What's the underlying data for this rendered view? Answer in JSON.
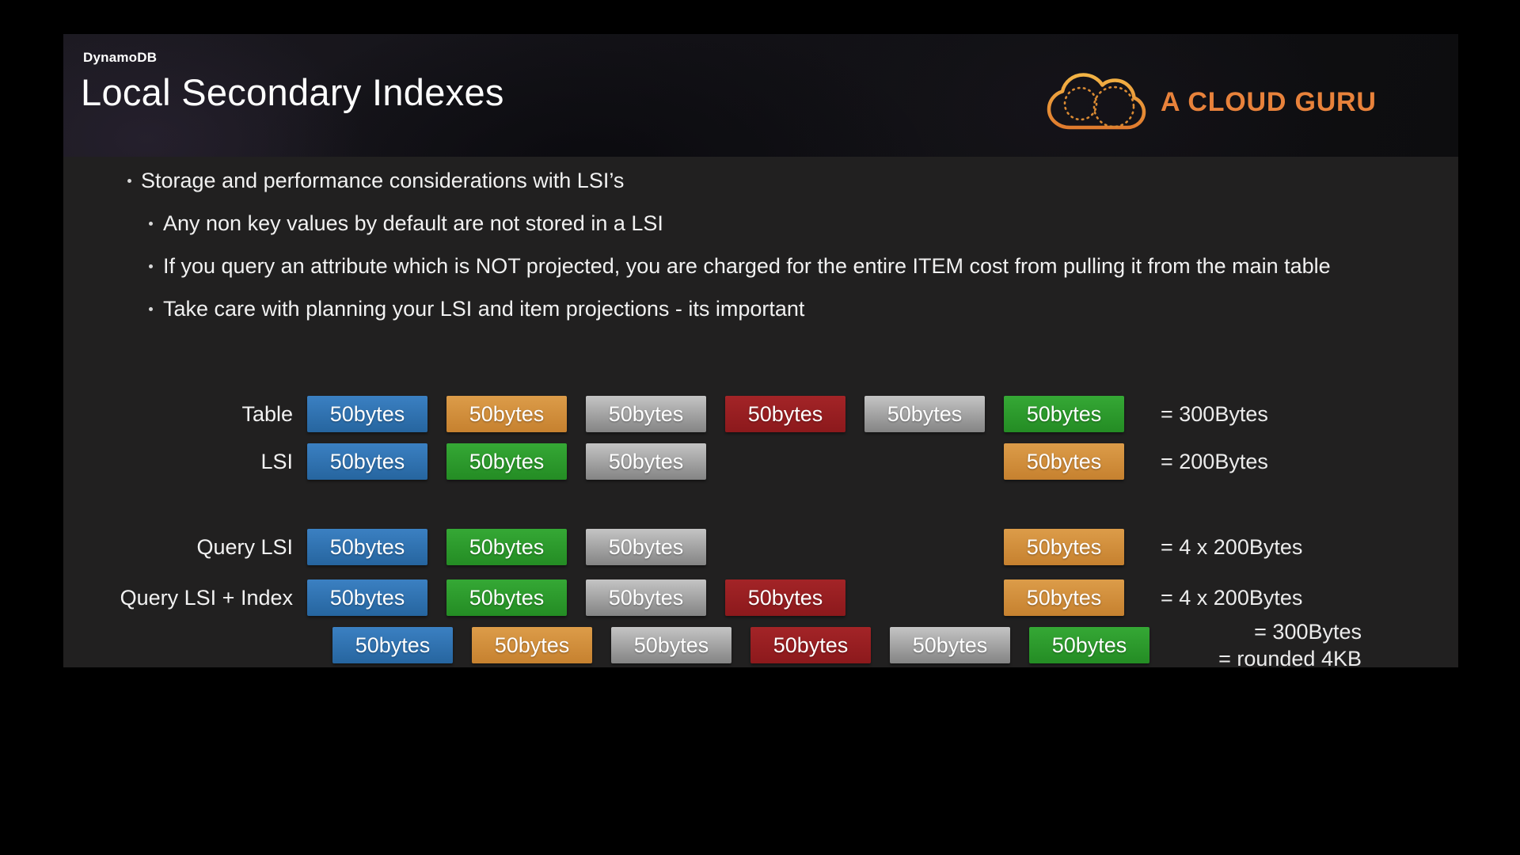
{
  "slide": {
    "kicker": "DynamoDB",
    "title": "Local Secondary Indexes",
    "logo": {
      "text": "A CLOUD GURU",
      "color": "#E8823B",
      "icon": "cloud-outline-icon"
    },
    "bullets": {
      "level1": "Storage and performance considerations with LSI’s",
      "level2": [
        "Any non key values by default are not stored in a LSI",
        "If you query an attribute which is NOT projected, you are charged for the entire ITEM cost from pulling it from the main table",
        "Take care with planning your LSI and item projections - its important"
      ]
    },
    "diagram": {
      "box_label": "50bytes",
      "colors": {
        "blue": {
          "top": "#3B80C2",
          "bottom": "#26659F"
        },
        "orange": {
          "top": "#DC9C49",
          "bottom": "#C6812F"
        },
        "gray": {
          "top": "#C4C4C4",
          "bottom": "#848484"
        },
        "red": {
          "top": "#A32427",
          "bottom": "#8C191C"
        },
        "green": {
          "top": "#35A835",
          "bottom": "#248C24"
        }
      },
      "rows": [
        {
          "label": "Table",
          "cells": [
            {
              "col": 0,
              "color": "blue"
            },
            {
              "col": 1,
              "color": "orange"
            },
            {
              "col": 2,
              "color": "gray"
            },
            {
              "col": 3,
              "color": "red"
            },
            {
              "col": 4,
              "color": "gray"
            },
            {
              "col": 5,
              "color": "green"
            }
          ],
          "result": "= 300Bytes"
        },
        {
          "label": "LSI",
          "cells": [
            {
              "col": 0,
              "color": "blue"
            },
            {
              "col": 1,
              "color": "green"
            },
            {
              "col": 2,
              "color": "gray"
            },
            {
              "col": 5,
              "color": "orange"
            }
          ],
          "result": "= 200Bytes"
        },
        {
          "label": "Query LSI",
          "cells": [
            {
              "col": 0,
              "color": "blue"
            },
            {
              "col": 1,
              "color": "green"
            },
            {
              "col": 2,
              "color": "gray"
            },
            {
              "col": 5,
              "color": "orange"
            }
          ],
          "result": "= 4 x 200Bytes"
        },
        {
          "label": "Query LSI + Index",
          "cells": [
            {
              "col": 0,
              "color": "blue"
            },
            {
              "col": 1,
              "color": "green"
            },
            {
              "col": 2,
              "color": "gray"
            },
            {
              "col": 3,
              "color": "red"
            },
            {
              "col": 5,
              "color": "orange"
            }
          ],
          "result": "= 4 x 200Bytes"
        },
        {
          "label": "",
          "offset": true,
          "cells": [
            {
              "col": 0,
              "color": "blue"
            },
            {
              "col": 1,
              "color": "orange"
            },
            {
              "col": 2,
              "color": "gray"
            },
            {
              "col": 3,
              "color": "red"
            },
            {
              "col": 4,
              "color": "gray"
            },
            {
              "col": 5,
              "color": "green"
            }
          ],
          "result_lines": [
            "= 300Bytes",
            "= rounded 4KB"
          ]
        }
      ]
    }
  }
}
